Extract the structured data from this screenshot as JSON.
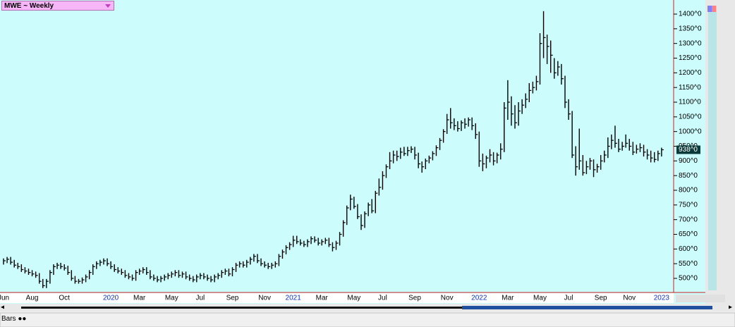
{
  "header": "MWE ~ Weekly",
  "tab": "Bars",
  "chart_data": {
    "type": "hlc",
    "categories": [
      "Jun",
      null,
      null,
      null,
      null,
      null,
      null,
      null,
      "Aug",
      null,
      null,
      null,
      null,
      null,
      null,
      null,
      null,
      "Oct",
      null,
      null,
      null,
      null,
      null,
      null,
      null,
      null,
      null,
      null,
      null,
      null,
      "2020",
      null,
      null,
      null,
      null,
      null,
      null,
      null,
      "Mar",
      null,
      null,
      null,
      null,
      null,
      null,
      null,
      null,
      "May",
      null,
      null,
      null,
      null,
      null,
      null,
      null,
      "Jul",
      null,
      null,
      null,
      null,
      null,
      null,
      null,
      null,
      "Sep",
      null,
      null,
      null,
      null,
      null,
      null,
      null,
      null,
      "Nov",
      null,
      null,
      null,
      null,
      null,
      null,
      null,
      "2021",
      null,
      null,
      null,
      null,
      null,
      null,
      null,
      "Mar",
      null,
      null,
      null,
      null,
      null,
      null,
      null,
      null,
      "May",
      null,
      null,
      null,
      null,
      null,
      null,
      null,
      "Jul",
      null,
      null,
      null,
      null,
      null,
      null,
      null,
      null,
      "Sep",
      null,
      null,
      null,
      null,
      null,
      null,
      null,
      null,
      "Nov",
      null,
      null,
      null,
      null,
      null,
      null,
      null,
      null,
      "2022",
      null,
      null,
      null,
      null,
      null,
      null,
      null,
      "Mar",
      null,
      null,
      null,
      null,
      null,
      null,
      null,
      null,
      "May",
      null,
      null,
      null,
      null,
      null,
      null,
      null,
      "Jul",
      null,
      null,
      null,
      null,
      null,
      null,
      null,
      null,
      "Sep",
      null,
      null,
      null,
      null,
      null,
      null,
      null,
      "Nov",
      null,
      null,
      null,
      null,
      null,
      null,
      null,
      null,
      "2023"
    ],
    "high": [
      568,
      573,
      573,
      563,
      553,
      548,
      538,
      533,
      528,
      523,
      518,
      498,
      498,
      528,
      548,
      553,
      553,
      548,
      543,
      528,
      508,
      498,
      503,
      513,
      528,
      548,
      558,
      563,
      568,
      568,
      558,
      548,
      538,
      533,
      528,
      518,
      513,
      528,
      533,
      538,
      538,
      528,
      513,
      508,
      508,
      513,
      518,
      523,
      528,
      528,
      523,
      523,
      513,
      508,
      513,
      518,
      518,
      513,
      508,
      513,
      518,
      528,
      533,
      533,
      538,
      553,
      558,
      558,
      563,
      573,
      583,
      583,
      568,
      558,
      553,
      553,
      558,
      583,
      598,
      613,
      623,
      645,
      645,
      633,
      628,
      633,
      643,
      643,
      638,
      633,
      638,
      638,
      623,
      628,
      658,
      698,
      748,
      785,
      778,
      753,
      718,
      728,
      758,
      770,
      798,
      840,
      865,
      888,
      930,
      935,
      935,
      945,
      948,
      948,
      950,
      948,
      928,
      898,
      908,
      918,
      933,
      953,
      978,
      1008,
      1060,
      1080,
      1045,
      1035,
      1038,
      1045,
      1048,
      1048,
      1028,
      1000,
      925,
      918,
      940,
      930,
      928,
      960,
      1100,
      1175,
      1120,
      1090,
      1100,
      1110,
      1130,
      1165,
      1170,
      1190,
      1335,
      1410,
      1330,
      1310,
      1250,
      1240,
      1230,
      1190,
      1110,
      1070,
      950,
      1010,
      920,
      900,
      910,
      905,
      890,
      920,
      935,
      980,
      990,
      1020,
      975,
      965,
      990,
      975,
      965,
      955,
      960,
      955,
      940,
      935,
      930,
      935,
      945
    ],
    "low": [
      547,
      552,
      547,
      537,
      532,
      522,
      517,
      512,
      507,
      502,
      482,
      467,
      467,
      482,
      512,
      532,
      532,
      527,
      512,
      492,
      482,
      482,
      482,
      487,
      497,
      512,
      532,
      542,
      547,
      542,
      532,
      522,
      517,
      512,
      502,
      497,
      492,
      492,
      512,
      517,
      512,
      497,
      492,
      487,
      487,
      492,
      497,
      502,
      507,
      502,
      502,
      497,
      492,
      487,
      487,
      497,
      497,
      492,
      487,
      487,
      497,
      502,
      512,
      507,
      507,
      522,
      537,
      537,
      537,
      547,
      557,
      552,
      542,
      537,
      532,
      532,
      537,
      542,
      567,
      582,
      597,
      607,
      617,
      612,
      607,
      607,
      617,
      622,
      612,
      612,
      617,
      607,
      592,
      597,
      612,
      642,
      682,
      732,
      737,
      702,
      665,
      672,
      712,
      722,
      722,
      782,
      802,
      842,
      872,
      892,
      900,
      907,
      917,
      917,
      927,
      905,
      875,
      860,
      872,
      892,
      902,
      917,
      937,
      962,
      992,
      1010,
      1005,
      1000,
      1002,
      1010,
      1017,
      1005,
      975,
      880,
      865,
      875,
      895,
      885,
      892,
      905,
      930,
      1040,
      1020,
      1010,
      1020,
      1060,
      1080,
      1100,
      1130,
      1140,
      1160,
      1250,
      1230,
      1200,
      1180,
      1190,
      1160,
      1080,
      1040,
      910,
      850,
      870,
      850,
      855,
      870,
      845,
      860,
      870,
      895,
      910,
      940,
      945,
      930,
      935,
      945,
      935,
      920,
      925,
      930,
      915,
      905,
      895,
      895,
      900,
      915
    ],
    "close": [
      560,
      565,
      555,
      545,
      540,
      530,
      525,
      520,
      515,
      510,
      490,
      475,
      490,
      520,
      540,
      545,
      540,
      535,
      520,
      500,
      490,
      490,
      495,
      505,
      520,
      540,
      550,
      555,
      560,
      550,
      540,
      530,
      525,
      520,
      510,
      505,
      500,
      520,
      525,
      530,
      520,
      505,
      500,
      495,
      500,
      505,
      510,
      515,
      520,
      510,
      515,
      505,
      500,
      495,
      505,
      510,
      505,
      500,
      495,
      505,
      510,
      520,
      525,
      515,
      530,
      545,
      550,
      545,
      555,
      565,
      575,
      560,
      550,
      545,
      540,
      545,
      550,
      575,
      590,
      605,
      615,
      630,
      625,
      620,
      615,
      625,
      635,
      630,
      620,
      625,
      630,
      615,
      605,
      620,
      650,
      690,
      740,
      770,
      745,
      710,
      680,
      720,
      750,
      730,
      790,
      810,
      850,
      880,
      900,
      920,
      915,
      930,
      925,
      935,
      940,
      920,
      890,
      880,
      900,
      910,
      925,
      945,
      970,
      1000,
      1040,
      1030,
      1020,
      1010,
      1030,
      1025,
      1040,
      1020,
      990,
      900,
      890,
      910,
      920,
      900,
      920,
      940,
      1080,
      1100,
      1060,
      1030,
      1070,
      1090,
      1110,
      1140,
      1150,
      1170,
      1300,
      1320,
      1290,
      1260,
      1200,
      1220,
      1180,
      1100,
      1060,
      920,
      880,
      900,
      860,
      880,
      900,
      870,
      880,
      900,
      920,
      950,
      970,
      960,
      940,
      950,
      960,
      950,
      930,
      940,
      945,
      930,
      920,
      910,
      905,
      925,
      938
    ],
    "color": "#000000",
    "last_label": "938^0",
    "ylim": [
      452,
      1448
    ],
    "yticks": [
      {
        "value": 500,
        "label": "500^0"
      },
      {
        "value": 550,
        "label": "550^0"
      },
      {
        "value": 600,
        "label": "600^0"
      },
      {
        "value": 650,
        "label": "650^0"
      },
      {
        "value": 700,
        "label": "700^0"
      },
      {
        "value": 750,
        "label": "750^0"
      },
      {
        "value": 800,
        "label": "800^0"
      },
      {
        "value": 850,
        "label": "850^0"
      },
      {
        "value": 900,
        "label": "900^0"
      },
      {
        "value": 950,
        "label": "950^0"
      },
      {
        "value": 1000,
        "label": "1000^0"
      },
      {
        "value": 1050,
        "label": "1050^0"
      },
      {
        "value": 1100,
        "label": "1100^0"
      },
      {
        "value": 1150,
        "label": "1150^0"
      },
      {
        "value": 1200,
        "label": "1200^0"
      },
      {
        "value": 1250,
        "label": "1250^0"
      },
      {
        "value": 1300,
        "label": "1300^0"
      },
      {
        "value": 1350,
        "label": "1350^0"
      },
      {
        "value": 1400,
        "label": "1400^0"
      }
    ],
    "grid": false
  }
}
